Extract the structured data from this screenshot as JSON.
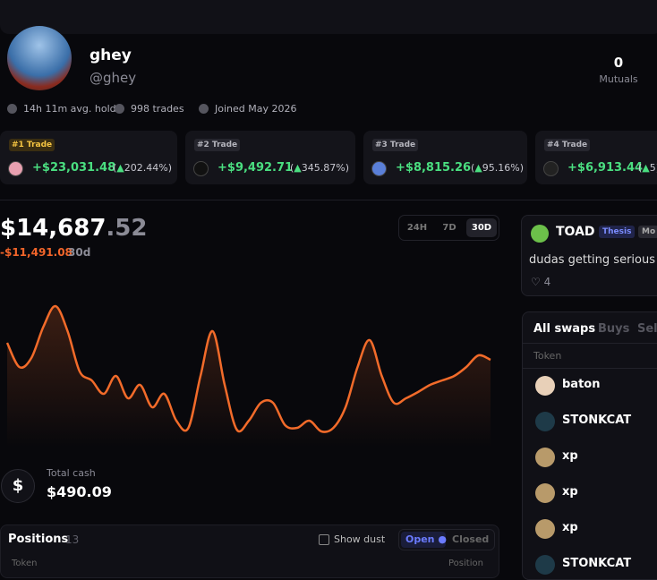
{
  "profile": {
    "name": "ghey",
    "handle": "@ghey",
    "mutuals_count": "0",
    "mutuals_label": "Mutuals"
  },
  "stats": [
    "14h 11m avg. hold",
    "998 trades",
    "Joined May 2026"
  ],
  "top_trades": [
    {
      "rank": "#1 Trade",
      "pnl": "+$23,031.48",
      "pct": "202.44%"
    },
    {
      "rank": "#2 Trade",
      "pnl": "+$9,492.71",
      "pct": "345.87%"
    },
    {
      "rank": "#3 Trade",
      "pnl": "+$8,815.26",
      "pct": "95.16%"
    },
    {
      "rank": "#4 Trade",
      "pnl": "+$6,913.44",
      "pct": "5"
    }
  ],
  "balance": {
    "whole": "$14,687",
    "cents": ".52",
    "change": "-$11,491.08",
    "period": "30d"
  },
  "ranges": [
    "24H",
    "7D",
    "30D"
  ],
  "pnl_chart": {
    "type": "line",
    "color": "#f26b2a",
    "ylim": [
      0,
      200
    ],
    "values": [
      117,
      90,
      100,
      135,
      158,
      130,
      85,
      75,
      60,
      80,
      55,
      70,
      45,
      60,
      30,
      22,
      80,
      130,
      70,
      20,
      30,
      50,
      50,
      25,
      22,
      30,
      18,
      22,
      45,
      90,
      120,
      80,
      50,
      55,
      62,
      70,
      75,
      80,
      90,
      103,
      98
    ]
  },
  "cash": {
    "icon": "$",
    "label": "Total cash",
    "value": "$490.09"
  },
  "positions": {
    "title": "Positions",
    "count": "13",
    "show_dust": "Show dust",
    "open": "Open",
    "closed": "Closed",
    "col_token": "Token",
    "col_position": "Position"
  },
  "post": {
    "author": "TOAD",
    "tags": [
      "Thesis",
      "Mo"
    ],
    "text": "dudas getting serious n",
    "likes": "4"
  },
  "swaps": {
    "tabs": [
      "All swaps",
      "Buys",
      "Sell"
    ],
    "col_token": "Token",
    "rows": [
      "baton",
      "STONKCAT",
      "xp",
      "xp",
      "xp",
      "STONKCAT"
    ]
  }
}
